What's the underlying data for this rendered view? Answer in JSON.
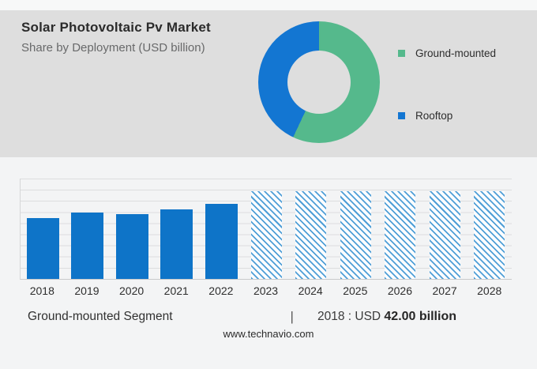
{
  "header": {
    "title": "Solar Photovoltaic Pv Market",
    "subtitle": "Share by Deployment (USD billion)"
  },
  "chart_data": [
    {
      "type": "pie",
      "donut": true,
      "title": "Share by Deployment (USD billion)",
      "labels": [
        "Ground-mounted",
        "Rooftop"
      ],
      "values": [
        57,
        43
      ],
      "unit": "percent-estimated-from-arc-angles",
      "colors": [
        "#55b98c",
        "#1376d2"
      ],
      "legend_position": "right",
      "hole_ratio": 0.52
    },
    {
      "type": "bar",
      "title": "Ground-mounted segment size (USD billion)",
      "ylim": [
        0,
        69.3
      ],
      "grid": true,
      "annotation": "2018 : USD 42.00 billion",
      "bars": [
        {
          "year": "2018",
          "value": 42.0,
          "forecast": false
        },
        {
          "year": "2019",
          "value": 45.7,
          "forecast": false
        },
        {
          "year": "2020",
          "value": 44.7,
          "forecast": false
        },
        {
          "year": "2021",
          "value": 48.0,
          "forecast": false
        },
        {
          "year": "2022",
          "value": 51.8,
          "forecast": false
        },
        {
          "year": "2023",
          "value": 60.5,
          "forecast": true
        },
        {
          "year": "2024",
          "value": 60.5,
          "forecast": true
        },
        {
          "year": "2025",
          "value": 60.5,
          "forecast": true
        },
        {
          "year": "2026",
          "value": 60.5,
          "forecast": true
        },
        {
          "year": "2027",
          "value": 60.5,
          "forecast": true
        },
        {
          "year": "2028",
          "value": 60.5,
          "forecast": true
        }
      ]
    }
  ],
  "caption": {
    "left": "Ground-mounted Segment",
    "separator": "|",
    "value_prefix": "2018 : USD ",
    "value_bold": "42.00 billion"
  },
  "footer": {
    "website": "www.technavio.com"
  }
}
